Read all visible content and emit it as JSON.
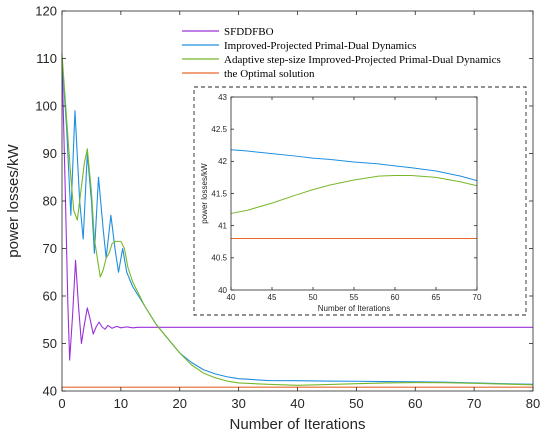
{
  "chart_data": [
    {
      "type": "line",
      "title": "",
      "xlabel": "Number of Iterations",
      "ylabel": "power losses/kW",
      "xlim": [
        0,
        80
      ],
      "ylim": [
        40,
        120
      ],
      "x_ticks": [
        "0",
        "10",
        "20",
        "30",
        "40",
        "50",
        "60",
        "70",
        "80"
      ],
      "y_ticks": [
        "40",
        "50",
        "60",
        "70",
        "80",
        "90",
        "100",
        "110",
        "120"
      ],
      "grid": false,
      "legend_position": "top-right",
      "series": [
        {
          "name": "SFDDFBO",
          "color": "#9b30d9",
          "points": [
            [
              0,
              110
            ],
            [
              0.5,
              85
            ],
            [
              1,
              58
            ],
            [
              1.3,
              46.5
            ],
            [
              1.8,
              56
            ],
            [
              2.3,
              67.5
            ],
            [
              2.8,
              58
            ],
            [
              3.3,
              50
            ],
            [
              3.8,
              54
            ],
            [
              4.3,
              57.5
            ],
            [
              4.8,
              55
            ],
            [
              5.3,
              52
            ],
            [
              5.8,
              53.5
            ],
            [
              6.3,
              54.5
            ],
            [
              6.8,
              53.5
            ],
            [
              7.3,
              53
            ],
            [
              7.8,
              53.8
            ],
            [
              8.5,
              53.2
            ],
            [
              9.3,
              53.6
            ],
            [
              10,
              53.3
            ],
            [
              11,
              53.5
            ],
            [
              12,
              53.3
            ],
            [
              13,
              53.4
            ],
            [
              15,
              53.4
            ],
            [
              20,
              53.4
            ],
            [
              30,
              53.4
            ],
            [
              40,
              53.4
            ],
            [
              50,
              53.4
            ],
            [
              60,
              53.4
            ],
            [
              70,
              53.4
            ],
            [
              80,
              53.4
            ]
          ]
        },
        {
          "name": "Improved-Projected Primal-Dual Dynamics",
          "color": "#1f8fe0",
          "points": [
            [
              0,
              110
            ],
            [
              0.8,
              95
            ],
            [
              1.5,
              77
            ],
            [
              2.2,
              99
            ],
            [
              3,
              80
            ],
            [
              3.6,
              72
            ],
            [
              4.3,
              90
            ],
            [
              5,
              80
            ],
            [
              5.5,
              69
            ],
            [
              6.2,
              85
            ],
            [
              7,
              74
            ],
            [
              7.5,
              68
            ],
            [
              8.3,
              77
            ],
            [
              9,
              70
            ],
            [
              9.6,
              65
            ],
            [
              10.3,
              70
            ],
            [
              11,
              65
            ],
            [
              12,
              62
            ],
            [
              13,
              60
            ],
            [
              14,
              58
            ],
            [
              15,
              56
            ],
            [
              16,
              54
            ],
            [
              17,
              52.5
            ],
            [
              18,
              51
            ],
            [
              19,
              49.5
            ],
            [
              20,
              48
            ],
            [
              22,
              46
            ],
            [
              24,
              44.5
            ],
            [
              26,
              43.6
            ],
            [
              28,
              43
            ],
            [
              30,
              42.6
            ],
            [
              35,
              42.2
            ],
            [
              40,
              42.18
            ],
            [
              45,
              42.1
            ],
            [
              50,
              42.05
            ],
            [
              55,
              41.98
            ],
            [
              60,
              41.93
            ],
            [
              65,
              41.85
            ],
            [
              70,
              41.7
            ],
            [
              75,
              41.55
            ],
            [
              80,
              41.4
            ]
          ]
        },
        {
          "name": "Adaptive step-size Improved-Projected Primal-Dual Dynamics",
          "color": "#77b82a",
          "points": [
            [
              0,
              111
            ],
            [
              0.8,
              97
            ],
            [
              1.5,
              85
            ],
            [
              2,
              78
            ],
            [
              2.6,
              76
            ],
            [
              3.2,
              82
            ],
            [
              3.8,
              88
            ],
            [
              4.3,
              91
            ],
            [
              5,
              82
            ],
            [
              5.5,
              72
            ],
            [
              6,
              68
            ],
            [
              6.5,
              64
            ],
            [
              7,
              65.5
            ],
            [
              7.5,
              68
            ],
            [
              8,
              69
            ],
            [
              8.5,
              71
            ],
            [
              9,
              71.5
            ],
            [
              10,
              71.5
            ],
            [
              10.6,
              70
            ],
            [
              11.2,
              66
            ],
            [
              12,
              63
            ],
            [
              13,
              60.5
            ],
            [
              14,
              58
            ],
            [
              15,
              56
            ],
            [
              16,
              54
            ],
            [
              17,
              52.5
            ],
            [
              18,
              51
            ],
            [
              19,
              49.5
            ],
            [
              20,
              48
            ],
            [
              22,
              45.5
            ],
            [
              24,
              43.8
            ],
            [
              26,
              42.8
            ],
            [
              28,
              42.1
            ],
            [
              30,
              41.7
            ],
            [
              35,
              41.4
            ],
            [
              40,
              41.2
            ],
            [
              45,
              41.35
            ],
            [
              50,
              41.55
            ],
            [
              55,
              41.7
            ],
            [
              60,
              41.78
            ],
            [
              65,
              41.75
            ],
            [
              70,
              41.62
            ],
            [
              75,
              41.45
            ],
            [
              80,
              41.3
            ]
          ]
        },
        {
          "name": "the Optimal solution",
          "color": "#e8692b",
          "points": [
            [
              0,
              40.8
            ],
            [
              80,
              40.8
            ]
          ]
        }
      ]
    },
    {
      "type": "line",
      "title": "",
      "xlabel": "Number of Iterations",
      "ylabel": "power losses/kW",
      "xlim": [
        40,
        70
      ],
      "ylim": [
        40,
        43
      ],
      "x_ticks": [
        "40",
        "45",
        "50",
        "55",
        "60",
        "65",
        "70"
      ],
      "y_ticks": [
        "40",
        "40.5",
        "41",
        "41.5",
        "42",
        "42.5",
        "43"
      ],
      "grid": false,
      "series": [
        {
          "color": "#1f8fe0",
          "points": [
            [
              40,
              42.18
            ],
            [
              42,
              42.16
            ],
            [
              45,
              42.12
            ],
            [
              48,
              42.08
            ],
            [
              50,
              42.05
            ],
            [
              52,
              42.03
            ],
            [
              55,
              41.99
            ],
            [
              58,
              41.96
            ],
            [
              60,
              41.93
            ],
            [
              62,
              41.9
            ],
            [
              65,
              41.85
            ],
            [
              68,
              41.77
            ],
            [
              70,
              41.7
            ]
          ]
        },
        {
          "color": "#77b82a",
          "points": [
            [
              40,
              41.19
            ],
            [
              42,
              41.24
            ],
            [
              45,
              41.35
            ],
            [
              48,
              41.48
            ],
            [
              50,
              41.56
            ],
            [
              52,
              41.63
            ],
            [
              55,
              41.71
            ],
            [
              58,
              41.77
            ],
            [
              60,
              41.78
            ],
            [
              62,
              41.78
            ],
            [
              65,
              41.75
            ],
            [
              68,
              41.68
            ],
            [
              70,
              41.62
            ]
          ]
        },
        {
          "color": "#e8692b",
          "points": [
            [
              40,
              40.8
            ],
            [
              70,
              40.8
            ]
          ]
        }
      ]
    }
  ]
}
